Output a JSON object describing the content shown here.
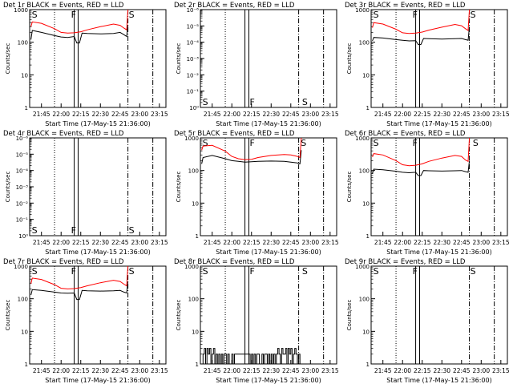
{
  "chart_data": [
    {
      "id": "det1r",
      "type": "line",
      "title": "Det 1r BLACK = Events, RED = LLD",
      "xlabel": "Start Time (17-May-15 21:36:00)",
      "ylabel": "Counts/sec",
      "yscale": "log",
      "ylim": [
        1,
        1000
      ],
      "yticks": [
        "1",
        "10",
        "100",
        "1000"
      ],
      "xlim": [
        "21:36",
        "23:20"
      ],
      "xticks": [
        "21:45",
        "22:00",
        "22:15",
        "22:30",
        "22:45",
        "23:00",
        "23:15"
      ],
      "markers": [
        {
          "label": "S",
          "time": "21:37"
        },
        {
          "label": "F",
          "time": "22:07"
        },
        {
          "label": "S",
          "time": "22:51"
        }
      ],
      "series": [
        {
          "color": "#000000",
          "x": [
            "21:37",
            "21:38",
            "21:45",
            "21:55",
            "22:00",
            "22:05",
            "22:10",
            "22:12",
            "22:14",
            "22:16",
            "22:20",
            "22:30",
            "22:40",
            "22:45",
            "22:48",
            "22:50",
            "22:51"
          ],
          "values": [
            120,
            230,
            200,
            160,
            145,
            140,
            150,
            95,
            95,
            190,
            185,
            180,
            185,
            200,
            170,
            150,
            330
          ]
        },
        {
          "color": "#ff0000",
          "x": [
            "21:37",
            "21:38",
            "21:45",
            "21:55",
            "22:00",
            "22:05",
            "22:10",
            "22:15",
            "22:20",
            "22:30",
            "22:40",
            "22:45",
            "22:48",
            "22:50",
            "22:51"
          ],
          "values": [
            300,
            420,
            380,
            260,
            200,
            190,
            195,
            210,
            240,
            300,
            360,
            330,
            270,
            240,
            1000
          ]
        }
      ]
    },
    {
      "id": "det2r",
      "type": "line",
      "title": "Det 2r BLACK = Events, RED = LLD",
      "xlabel": "Start Time (17-May-15 21:36:00)",
      "ylabel": "Counts/sec",
      "yscale": "log",
      "ylim": [
        1,
        1e-06
      ],
      "yticks": [
        "10⁰",
        "10⁻¹",
        "10⁻²",
        "10⁻³",
        "10⁻⁴",
        "10⁻⁵",
        "10⁻⁶"
      ],
      "xlim": [
        "21:36",
        "23:20"
      ],
      "xticks": [
        "21:45",
        "22:00",
        "22:15",
        "22:30",
        "22:45",
        "23:00",
        "23:15"
      ],
      "markers": [
        {
          "label": "S",
          "time": "21:37"
        },
        {
          "label": "F",
          "time": "22:13"
        },
        {
          "label": "S",
          "time": "22:53"
        }
      ],
      "series": []
    },
    {
      "id": "det3r",
      "type": "line",
      "title": "Det 3r BLACK = Events, RED = LLD",
      "xlabel": "Start Time (17-May-15 21:36:00)",
      "ylabel": "Counts/sec",
      "yscale": "log",
      "ylim": [
        1,
        1000
      ],
      "yticks": [
        "1",
        "10",
        "100",
        "1000"
      ],
      "xlim": [
        "21:36",
        "23:20"
      ],
      "xticks": [
        "21:45",
        "22:00",
        "22:15",
        "22:30",
        "22:45",
        "23:00",
        "23:15"
      ],
      "markers": [
        {
          "label": "S",
          "time": "21:37"
        },
        {
          "label": "F",
          "time": "22:07"
        },
        {
          "label": "S",
          "time": "22:51"
        }
      ],
      "series": [
        {
          "color": "#000000",
          "x": [
            "21:37",
            "21:38",
            "21:45",
            "21:55",
            "22:00",
            "22:05",
            "22:10",
            "22:12",
            "22:14",
            "22:16",
            "22:20",
            "22:30",
            "22:40",
            "22:45",
            "22:48",
            "22:50",
            "22:51"
          ],
          "values": [
            110,
            140,
            135,
            120,
            115,
            110,
            112,
            85,
            85,
            130,
            128,
            125,
            128,
            130,
            120,
            115,
            300
          ]
        },
        {
          "color": "#ff0000",
          "x": [
            "21:37",
            "21:38",
            "21:45",
            "21:55",
            "22:00",
            "22:05",
            "22:10",
            "22:15",
            "22:20",
            "22:30",
            "22:40",
            "22:45",
            "22:48",
            "22:50",
            "22:51"
          ],
          "values": [
            280,
            400,
            360,
            250,
            195,
            185,
            190,
            205,
            235,
            290,
            350,
            320,
            260,
            230,
            1000
          ]
        }
      ]
    },
    {
      "id": "det4r",
      "type": "line",
      "title": "Det 4r BLACK = Events, RED = LLD",
      "xlabel": "Start Time (17-May-15 21:36:00)",
      "ylabel": "Counts/sec",
      "yscale": "log",
      "ylim": [
        1,
        1e-06
      ],
      "yticks": [
        "10⁰",
        "10⁻¹",
        "10⁻²",
        "10⁻³",
        "10⁻⁴",
        "10⁻⁵",
        "10⁻⁶"
      ],
      "xlim": [
        "21:36",
        "23:20"
      ],
      "xticks": [
        "21:45",
        "22:00",
        "22:15",
        "22:30",
        "22:45",
        "23:00",
        "23:15"
      ],
      "markers": [
        {
          "label": "S",
          "time": "21:37"
        },
        {
          "label": "F",
          "time": "22:07"
        },
        {
          "label": "S",
          "time": "22:51"
        }
      ],
      "series": []
    },
    {
      "id": "det5r",
      "type": "line",
      "title": "Det 5r BLACK = Events, RED = LLD",
      "xlabel": "Start Time (17-May-15 21:36:00)",
      "ylabel": "Counts/sec",
      "yscale": "log",
      "ylim": [
        1,
        1000
      ],
      "yticks": [
        "1",
        "10",
        "100",
        "1000"
      ],
      "xlim": [
        "21:36",
        "23:20"
      ],
      "xticks": [
        "21:45",
        "22:00",
        "22:15",
        "22:30",
        "22:45",
        "23:00",
        "23:15"
      ],
      "markers": [
        {
          "label": "S",
          "time": "21:37"
        },
        {
          "label": "F",
          "time": "22:13"
        },
        {
          "label": "S",
          "time": "22:52"
        }
      ],
      "series": [
        {
          "color": "#000000",
          "x": [
            "21:37",
            "21:38",
            "21:45",
            "21:55",
            "22:00",
            "22:05",
            "22:10",
            "22:15",
            "22:20",
            "22:30",
            "22:40",
            "22:45",
            "22:50",
            "22:52",
            "22:53"
          ],
          "values": [
            160,
            250,
            290,
            230,
            200,
            190,
            180,
            185,
            190,
            195,
            190,
            180,
            170,
            160,
            420
          ]
        },
        {
          "color": "#ff0000",
          "x": [
            "21:37",
            "21:38",
            "21:45",
            "21:55",
            "22:00",
            "22:05",
            "22:10",
            "22:15",
            "22:20",
            "22:30",
            "22:40",
            "22:45",
            "22:50",
            "22:52",
            "22:53"
          ],
          "values": [
            420,
            560,
            590,
            390,
            270,
            230,
            215,
            220,
            250,
            290,
            310,
            300,
            270,
            250,
            1000
          ]
        }
      ]
    },
    {
      "id": "det6r",
      "type": "line",
      "title": "Det 6r BLACK = Events, RED = LLD",
      "xlabel": "Start Time (17-May-15 21:36:00)",
      "ylabel": "Counts/sec",
      "yscale": "log",
      "ylim": [
        1,
        1000
      ],
      "yticks": [
        "1",
        "10",
        "100",
        "1000"
      ],
      "xlim": [
        "21:36",
        "23:20"
      ],
      "xticks": [
        "21:45",
        "22:00",
        "22:15",
        "22:30",
        "22:45",
        "23:00",
        "23:15"
      ],
      "markers": [
        {
          "label": "S",
          "time": "21:37"
        },
        {
          "label": "F",
          "time": "22:07"
        },
        {
          "label": "S",
          "time": "22:53"
        }
      ],
      "series": [
        {
          "color": "#000000",
          "x": [
            "21:37",
            "21:38",
            "21:45",
            "21:55",
            "22:00",
            "22:05",
            "22:10",
            "22:12",
            "22:14",
            "22:16",
            "22:20",
            "22:30",
            "22:40",
            "22:45",
            "22:48",
            "22:50",
            "22:51"
          ],
          "values": [
            80,
            110,
            105,
            95,
            88,
            85,
            88,
            70,
            70,
            100,
            98,
            96,
            98,
            100,
            92,
            88,
            200
          ]
        },
        {
          "color": "#ff0000",
          "x": [
            "21:37",
            "21:38",
            "21:45",
            "21:55",
            "22:00",
            "22:05",
            "22:10",
            "22:15",
            "22:20",
            "22:30",
            "22:40",
            "22:45",
            "22:48",
            "22:50",
            "22:51"
          ],
          "values": [
            260,
            330,
            300,
            200,
            150,
            140,
            145,
            160,
            190,
            240,
            290,
            270,
            210,
            190,
            1000
          ]
        }
      ]
    },
    {
      "id": "det7r",
      "type": "line",
      "title": "Det 7r BLACK = Events, RED = LLD",
      "xlabel": "Start Time (17-May-15 21:36:00)",
      "ylabel": "Counts/sec",
      "yscale": "log",
      "ylim": [
        1,
        1000
      ],
      "yticks": [
        "1",
        "10",
        "100",
        "1000"
      ],
      "xlim": [
        "21:36",
        "23:20"
      ],
      "xticks": [
        "21:45",
        "22:00",
        "22:15",
        "22:30",
        "22:45",
        "23:00",
        "23:15"
      ],
      "markers": [
        {
          "label": "S",
          "time": "21:37"
        },
        {
          "label": "F",
          "time": "22:07"
        },
        {
          "label": "S",
          "time": "22:51"
        }
      ],
      "series": [
        {
          "color": "#000000",
          "x": [
            "21:37",
            "21:38",
            "21:45",
            "21:55",
            "22:00",
            "22:05",
            "22:10",
            "22:12",
            "22:14",
            "22:16",
            "22:20",
            "22:30",
            "22:40",
            "22:45",
            "22:48",
            "22:50",
            "22:51"
          ],
          "values": [
            130,
            190,
            180,
            160,
            150,
            148,
            150,
            95,
            95,
            180,
            175,
            172,
            175,
            180,
            160,
            150,
            330
          ]
        },
        {
          "color": "#ff0000",
          "x": [
            "21:37",
            "21:38",
            "21:45",
            "21:55",
            "22:00",
            "22:05",
            "22:10",
            "22:15",
            "22:20",
            "22:30",
            "22:40",
            "22:45",
            "22:48",
            "22:50",
            "22:51"
          ],
          "values": [
            290,
            430,
            390,
            270,
            210,
            200,
            205,
            220,
            250,
            310,
            370,
            340,
            280,
            250,
            1000
          ]
        }
      ]
    },
    {
      "id": "det8r",
      "type": "line",
      "title": "Det 8r BLACK = Events, RED = LLD",
      "xlabel": "Start Time (17-May-15 21:36:00)",
      "ylabel": "Counts/sec",
      "yscale": "log",
      "ylim": [
        1,
        1000
      ],
      "yticks": [
        "1",
        "10",
        "100",
        "1000"
      ],
      "xlim": [
        "21:36",
        "23:20"
      ],
      "xticks": [
        "21:45",
        "22:00",
        "22:15",
        "22:30",
        "22:45",
        "23:00",
        "23:15"
      ],
      "markers": [
        {
          "label": "S",
          "time": "21:37"
        },
        {
          "label": "F",
          "time": "22:13"
        },
        {
          "label": "S",
          "time": "22:53"
        }
      ],
      "series": [
        {
          "color": "#000000",
          "x": [
            "21:37",
            "21:38",
            "21:39",
            "21:40",
            "21:41",
            "21:42",
            "21:43",
            "21:44",
            "21:45",
            "21:46",
            "21:47",
            "21:48",
            "21:49",
            "21:50",
            "21:51",
            "21:52",
            "21:53",
            "21:54",
            "21:55",
            "21:56",
            "21:57",
            "21:58",
            "21:59",
            "22:00",
            "22:01",
            "22:02",
            "22:14",
            "22:15",
            "22:16",
            "22:17",
            "22:18",
            "22:19",
            "22:20",
            "22:21",
            "22:22",
            "22:23",
            "22:24",
            "22:25",
            "22:26",
            "22:27",
            "22:28",
            "22:29",
            "22:30",
            "22:31",
            "22:32",
            "22:33",
            "22:34",
            "22:35",
            "22:36",
            "22:37",
            "22:38",
            "22:39",
            "22:40",
            "22:41",
            "22:42",
            "22:43",
            "22:44",
            "22:45",
            "22:46",
            "22:47",
            "22:48",
            "22:49",
            "22:50",
            "22:51",
            "22:52"
          ],
          "values": [
            1,
            2,
            3,
            1,
            3,
            2,
            3,
            1,
            2,
            3,
            1,
            2,
            1,
            2,
            1,
            2,
            1,
            2,
            2,
            1,
            2,
            1,
            1,
            2,
            1,
            2,
            1,
            2,
            1,
            2,
            1,
            2,
            2,
            1,
            1,
            2,
            1,
            2,
            2,
            1,
            2,
            1,
            2,
            1,
            2,
            1,
            2,
            3,
            2,
            1,
            3,
            2,
            2,
            3,
            1,
            3,
            2,
            3,
            1,
            2,
            3,
            2,
            1,
            2,
            1
          ]
        }
      ]
    },
    {
      "id": "det9r",
      "type": "line",
      "title": "Det 9r BLACK = Events, RED = LLD",
      "xlabel": "Start Time (17-May-15 21:36:00)",
      "ylabel": "Counts/sec",
      "yscale": "log",
      "ylim": [
        1,
        1000
      ],
      "yticks": [
        "1",
        "10",
        "100",
        "1000"
      ],
      "xlim": [
        "21:36",
        "23:20"
      ],
      "xticks": [
        "21:45",
        "22:00",
        "22:15",
        "22:30",
        "22:45",
        "23:00",
        "23:15"
      ],
      "markers": [
        {
          "label": "S",
          "time": "21:37"
        },
        {
          "label": "F",
          "time": "22:07"
        },
        {
          "label": "S",
          "time": "22:51"
        }
      ],
      "series": []
    }
  ],
  "vlines": {
    "dotted": "21:55",
    "solid": [
      "22:10",
      "22:13"
    ],
    "dashdot": [
      "22:51",
      "23:10"
    ]
  }
}
